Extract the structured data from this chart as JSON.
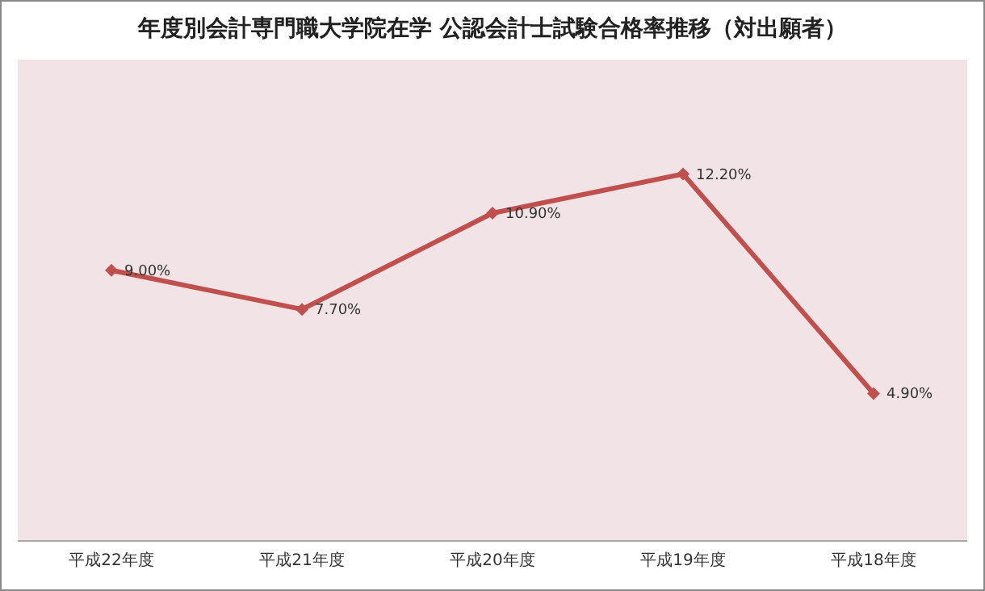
{
  "chart_data": {
    "type": "line",
    "title": "年度別会計専門職大学院在学 公認会計士試験合格率推移（対出願者）",
    "categories": [
      "平成22年度",
      "平成21年度",
      "平成20年度",
      "平成19年度",
      "平成18年度"
    ],
    "series": [
      {
        "color": "#c0504d",
        "values": [
          9.0,
          7.7,
          10.9,
          12.2,
          4.9
        ],
        "value_labels": [
          "9.00%",
          "7.70%",
          "10.90%",
          "12.20%",
          "4.90%"
        ]
      }
    ],
    "marker": "diamond",
    "grid": false
  }
}
